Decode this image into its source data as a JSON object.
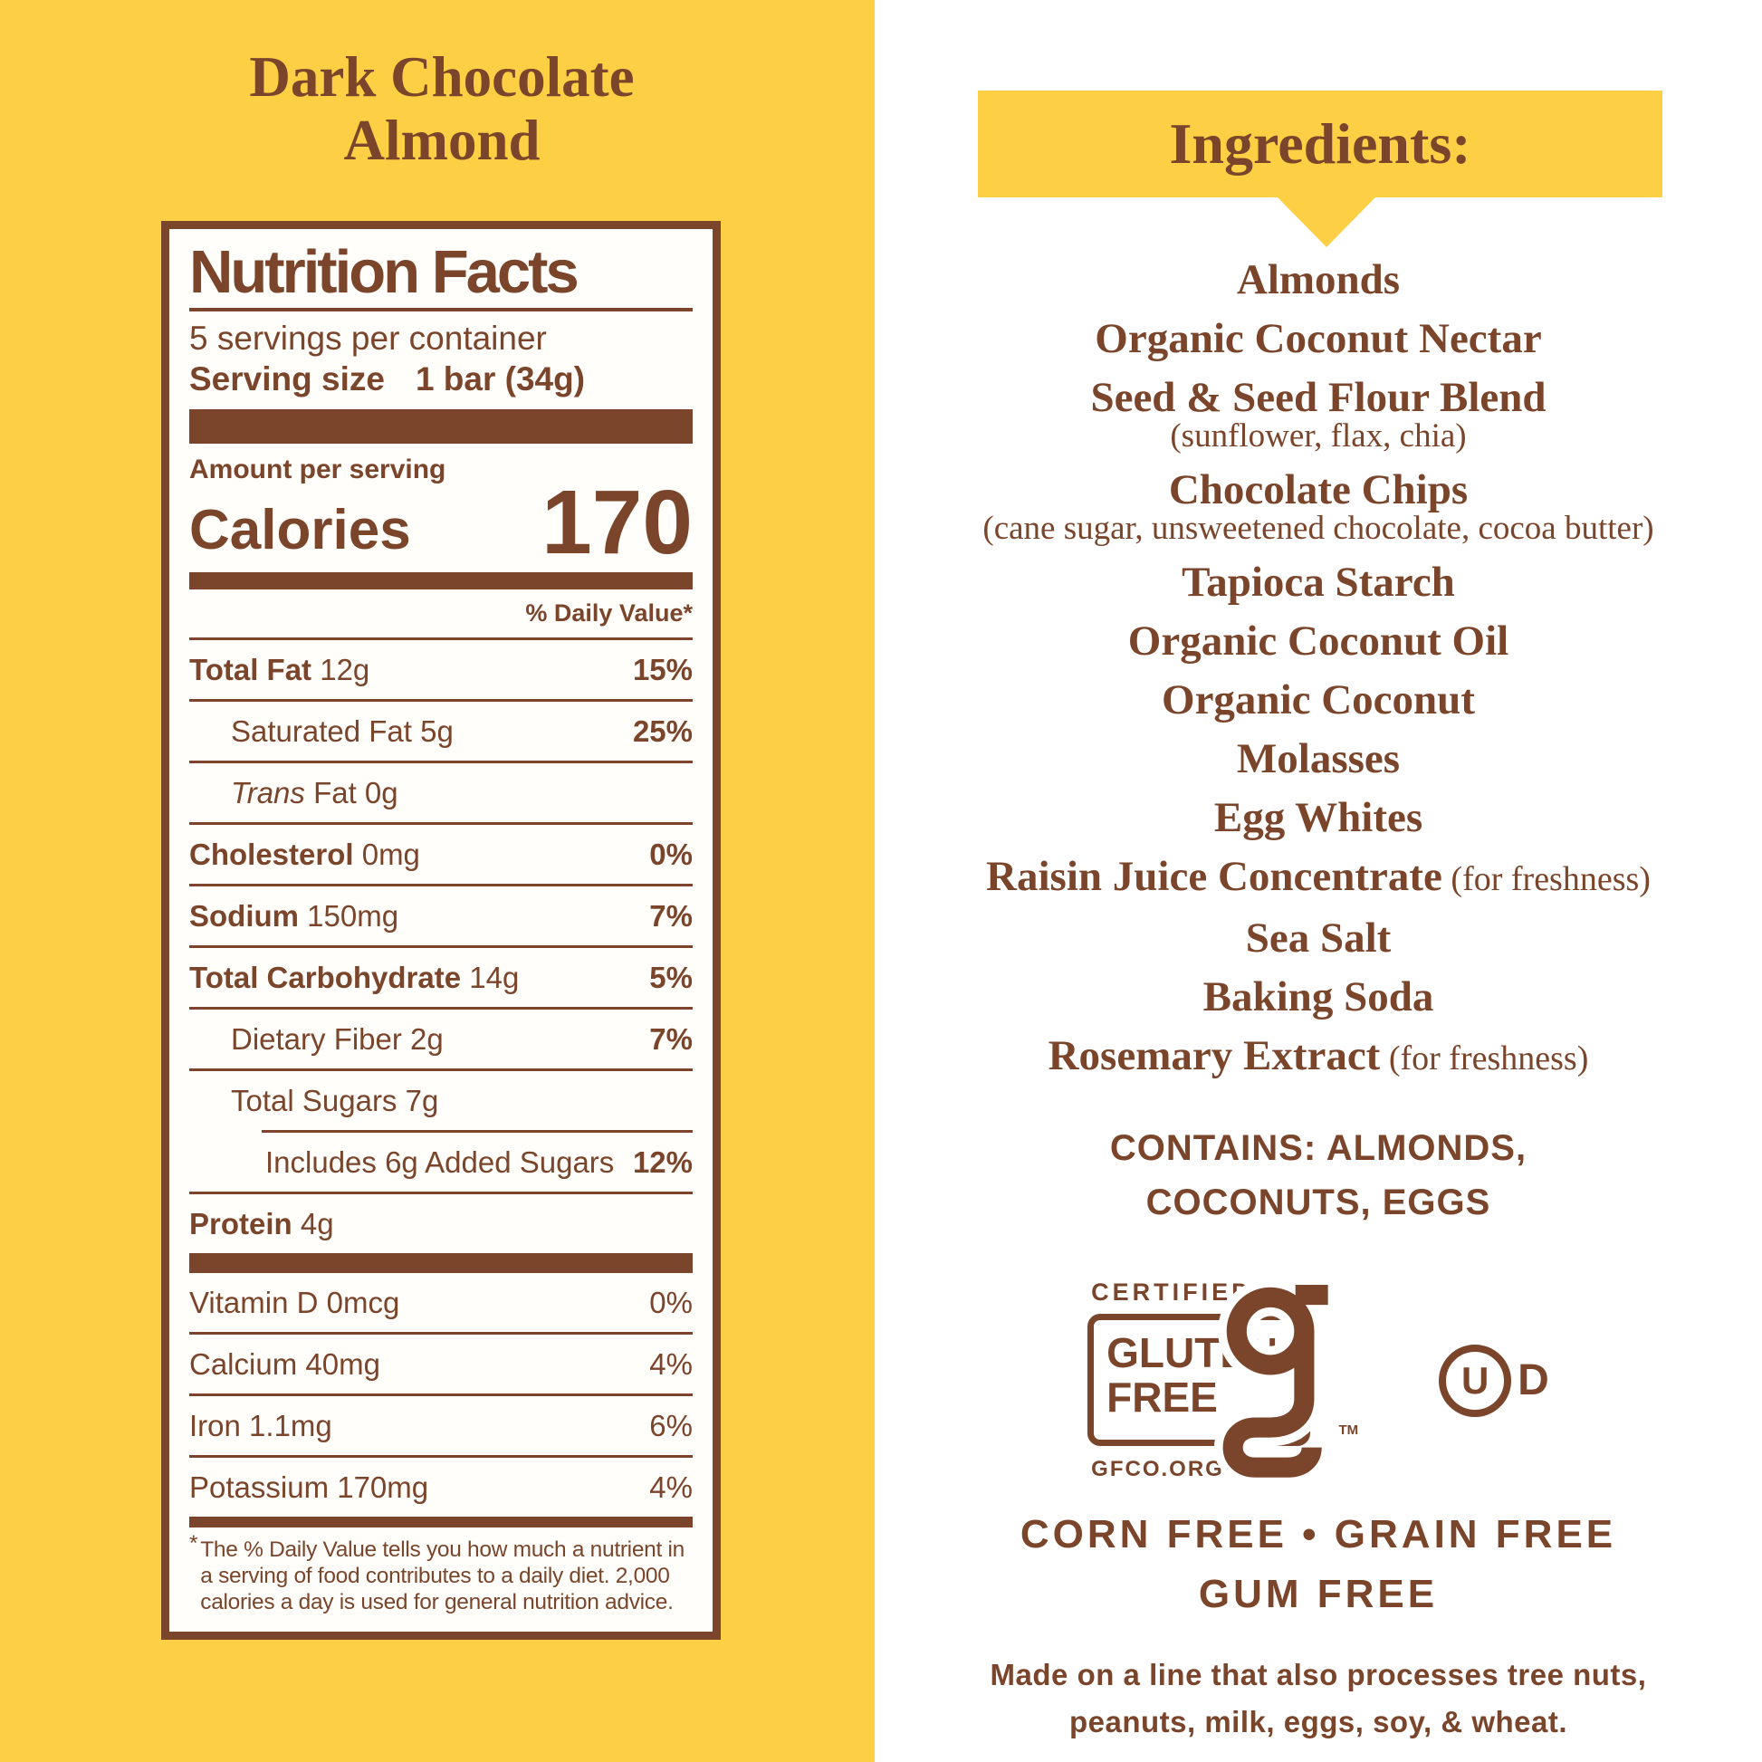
{
  "colors": {
    "background_yellow": "#FCCF45",
    "text_brown": "#7A452A",
    "panel_white": "#FFFFFF"
  },
  "left": {
    "title_line1": "Dark Chocolate",
    "title_line2": "Almond",
    "nutrition": {
      "header": "Nutrition Facts",
      "servings_per_container": "5 servings per container",
      "serving_size_label": "Serving size",
      "serving_size_value": "1 bar (34g)",
      "amount_per_serving": "Amount per serving",
      "calories_label": "Calories",
      "calories_value": "170",
      "daily_value_header": "% Daily Value*",
      "rows": [
        {
          "label": "Total Fat",
          "bold": true,
          "amount": "12g",
          "pct": "15%",
          "pctBold": true,
          "indent": 0
        },
        {
          "label": "Saturated Fat",
          "amount": "5g",
          "pct": "25%",
          "pctBold": true,
          "indent": 1
        },
        {
          "italic": "Trans",
          "label": " Fat",
          "amount": "0g",
          "pct": "",
          "indent": 1
        },
        {
          "label": "Cholesterol",
          "bold": true,
          "amount": "0mg",
          "pct": "0%",
          "pctBold": true,
          "indent": 0
        },
        {
          "label": "Sodium",
          "bold": true,
          "amount": "150mg",
          "pct": "7%",
          "pctBold": true,
          "indent": 0
        },
        {
          "label": "Total Carbohydrate",
          "bold": true,
          "amount": "14g",
          "pct": "5%",
          "pctBold": true,
          "indent": 0
        },
        {
          "label": "Dietary Fiber",
          "amount": "2g",
          "pct": "7%",
          "pctBold": true,
          "indent": 1
        },
        {
          "label": "Total Sugars",
          "amount": "7g",
          "pct": "",
          "indent": 1,
          "noBorder": true,
          "subruleAfter": true
        },
        {
          "label": "Includes 6g Added Sugars",
          "pct": "12%",
          "pctBold": true,
          "indent": 2
        },
        {
          "label": "Protein",
          "bold": true,
          "amount": "4g",
          "pct": "",
          "indent": 0,
          "noBorder": true
        }
      ],
      "micronutrients": [
        {
          "label": "Vitamin D",
          "amount": "0mcg",
          "pct": "0%"
        },
        {
          "label": "Calcium",
          "amount": "40mg",
          "pct": "4%"
        },
        {
          "label": "Iron",
          "amount": "1.1mg",
          "pct": "6%"
        },
        {
          "label": "Potassium",
          "amount": "170mg",
          "pct": "4%",
          "noBorder": true
        }
      ],
      "footnote_asterisk": "*",
      "footnote": "The % Daily Value tells you how much a nutrient in a serving of food contributes to a daily diet. 2,000 calories a day is used for general nutrition advice."
    }
  },
  "right": {
    "ingredients_title": "Ingredients:",
    "ingredients": [
      {
        "text": "Almonds"
      },
      {
        "text": "Organic Coconut Nectar"
      },
      {
        "text": "Seed & Seed Flour Blend",
        "sub": "(sunflower, flax, chia)"
      },
      {
        "text": "Chocolate Chips",
        "sub": "(cane sugar, unsweetened chocolate, cocoa butter)"
      },
      {
        "text": "Tapioca Starch"
      },
      {
        "text": "Organic Coconut Oil"
      },
      {
        "text": "Organic Coconut"
      },
      {
        "text": "Molasses"
      },
      {
        "text": "Egg Whites"
      },
      {
        "text": "Raisin Juice Concentrate",
        "suffix": "(for freshness)"
      },
      {
        "text": "Sea Salt"
      },
      {
        "text": "Baking Soda"
      },
      {
        "text": "Rosemary Extract",
        "suffix": "(for freshness)"
      }
    ],
    "contains_line1": "CONTAINS: ALMONDS,",
    "contains_line2": "COCONUTS, EGGS",
    "gf_logo": {
      "certified": "CERTIFIED",
      "line1": "GLUTEN",
      "line2": "FREE",
      "url": "GFCO.ORG",
      "tm": "TM"
    },
    "kosher": {
      "u": "U",
      "d": "D"
    },
    "free_line1": "CORN FREE • GRAIN FREE",
    "free_line2": "GUM FREE",
    "allergen_line1": "Made on a line that also processes tree nuts,",
    "allergen_line2": "peanuts, milk, eggs, soy, & wheat."
  }
}
